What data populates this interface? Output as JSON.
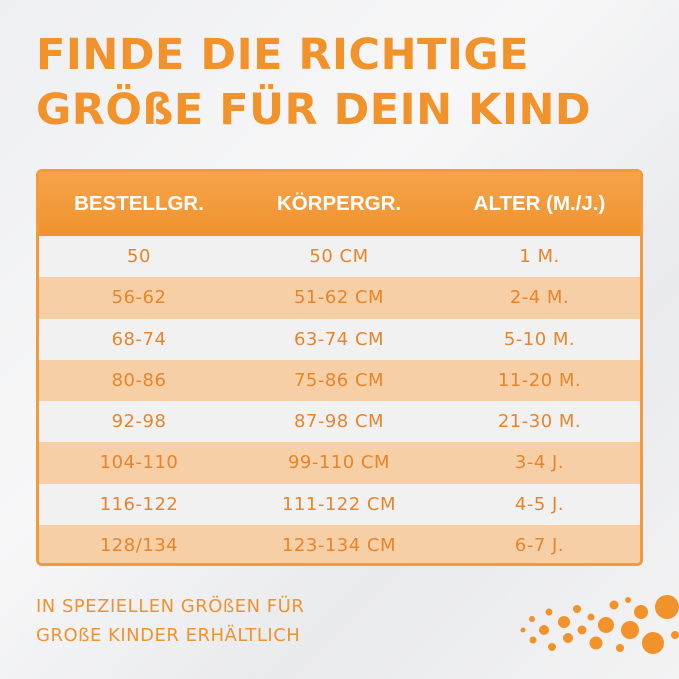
{
  "title": {
    "line1": "FINDE DIE RICHTIGE",
    "line2": "GRÖßE FÜR DEIN KIND"
  },
  "table": {
    "headers": [
      "BESTELLGR.",
      "KÖRPERGR.",
      "ALTER (M./J.)"
    ],
    "rows": [
      [
        "50",
        "50 CM",
        "1 M."
      ],
      [
        "56-62",
        "51-62 CM",
        "2-4 M."
      ],
      [
        "68-74",
        "63-74 CM",
        "5-10 M."
      ],
      [
        "80-86",
        "75-86 CM",
        "11-20 M."
      ],
      [
        "92-98",
        "87-98 CM",
        "21-30 M."
      ],
      [
        "104-110",
        "99-110 CM",
        "3-4 J."
      ],
      [
        "116-122",
        "111-122 CM",
        "4-5 J."
      ],
      [
        "128/134",
        "123-134 CM",
        "6-7 J."
      ]
    ]
  },
  "note": {
    "line1": "IN SPEZIELLEN GRÖßEN FÜR",
    "line2": "GROßE KINDER ERHÄLTLICH"
  },
  "colors": {
    "accent": "#f2922a",
    "row_shade": "#f7cfa6",
    "background": "#f1f1f2"
  },
  "decoration": "orange-bubbles"
}
